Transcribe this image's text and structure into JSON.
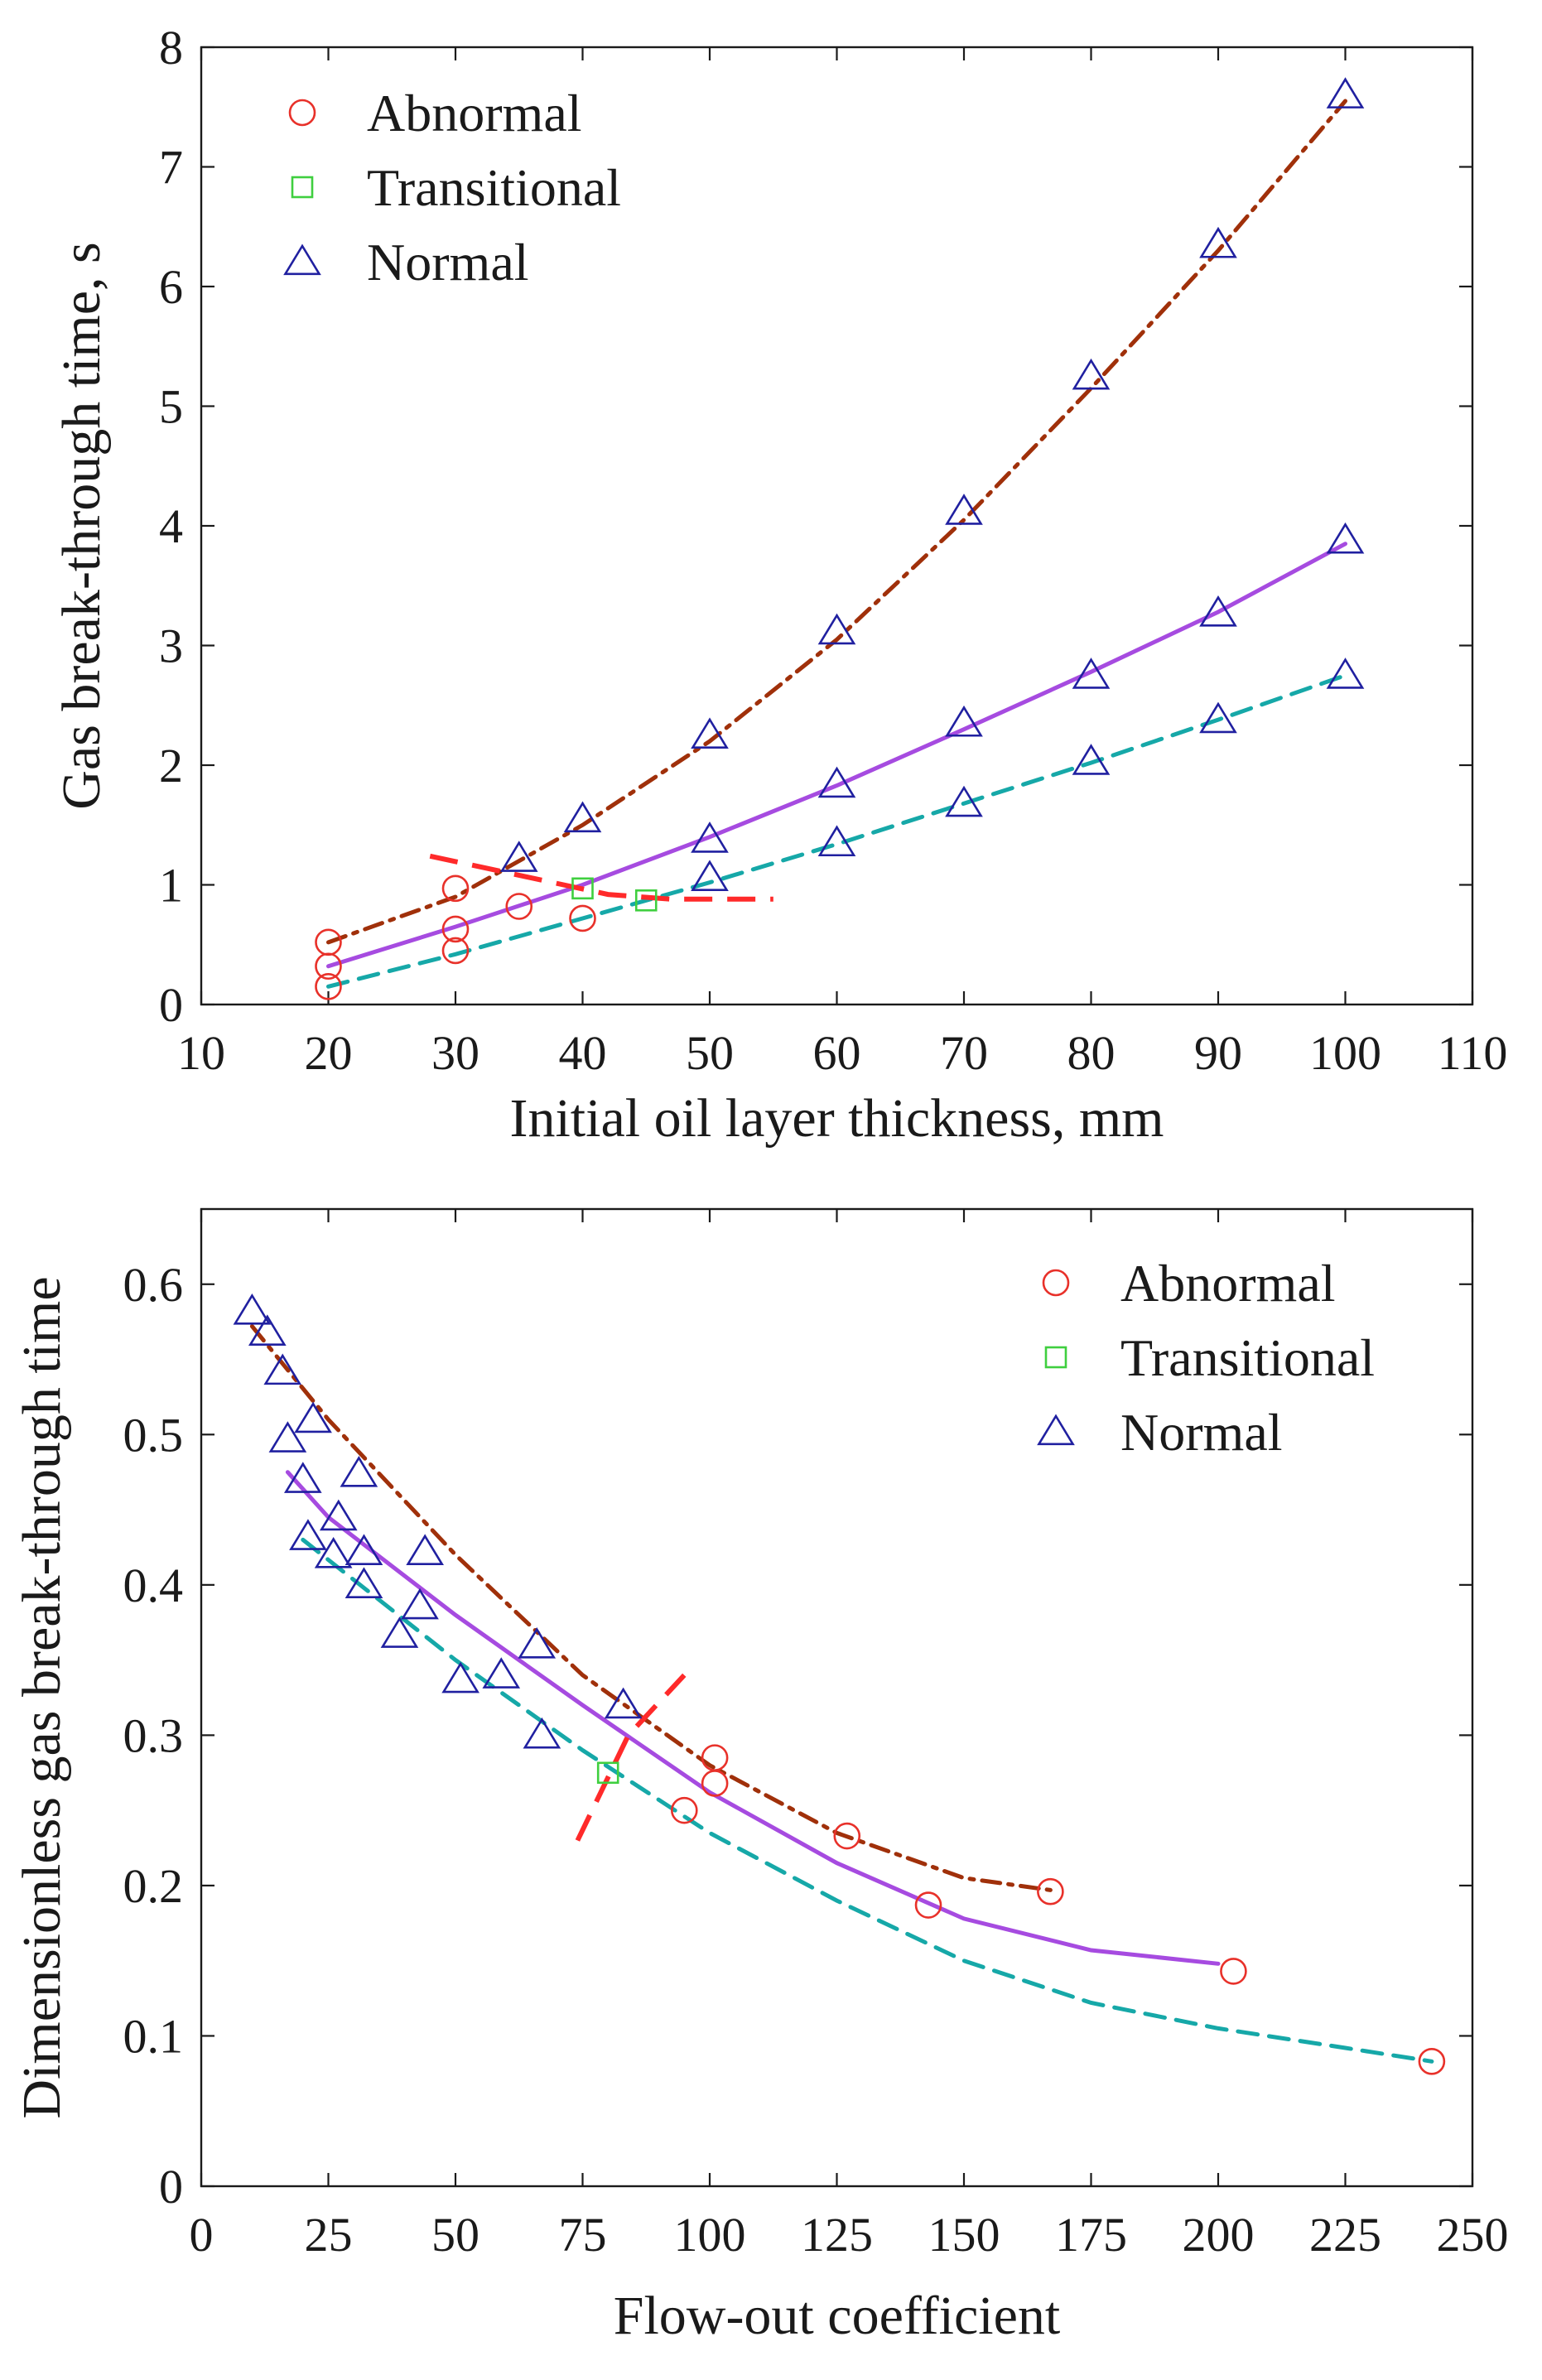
{
  "chart_data": [
    {
      "type": "scatter",
      "xlabel": "Initial oil layer thickness, mm",
      "ylabel": "Gas break-through time, s",
      "xlim": [
        10,
        110
      ],
      "ylim": [
        0,
        8
      ],
      "xticks": [
        10,
        20,
        30,
        40,
        50,
        60,
        70,
        80,
        90,
        100,
        110
      ],
      "yticks": [
        0,
        1,
        2,
        3,
        4,
        5,
        6,
        7,
        8
      ],
      "legend_position": "top-left",
      "legend": [
        {
          "label": "Abnormal",
          "marker": "circle",
          "color": "#e8312a"
        },
        {
          "label": "Transitional",
          "marker": "square",
          "color": "#3fcf3f"
        },
        {
          "label": "Normal",
          "marker": "triangle",
          "color": "#2020a0"
        }
      ],
      "series": [
        {
          "name": "Abnormal",
          "marker": "circle",
          "color": "#e8312a",
          "points": [
            [
              20,
              0.52
            ],
            [
              20,
              0.32
            ],
            [
              20,
              0.15
            ],
            [
              30,
              0.97
            ],
            [
              30,
              0.63
            ],
            [
              30,
              0.45
            ],
            [
              35,
              0.82
            ],
            [
              40,
              0.72
            ]
          ]
        },
        {
          "name": "Transitional",
          "marker": "square",
          "color": "#3fcf3f",
          "points": [
            [
              40,
              0.97
            ],
            [
              45,
              0.87
            ]
          ]
        },
        {
          "name": "Normal",
          "marker": "triangle",
          "color": "#2020a0",
          "points": [
            [
              35,
              1.22
            ],
            [
              40,
              1.55
            ],
            [
              50,
              2.25
            ],
            [
              60,
              3.12
            ],
            [
              70,
              4.12
            ],
            [
              80,
              5.25
            ],
            [
              90,
              6.35
            ],
            [
              100,
              7.6
            ],
            [
              50,
              1.38
            ],
            [
              60,
              1.84
            ],
            [
              70,
              2.35
            ],
            [
              80,
              2.75
            ],
            [
              90,
              3.27
            ],
            [
              100,
              3.88
            ],
            [
              50,
              1.06
            ],
            [
              60,
              1.35
            ],
            [
              70,
              1.68
            ],
            [
              80,
              2.03
            ],
            [
              90,
              2.38
            ],
            [
              100,
              2.75
            ]
          ]
        }
      ],
      "fit_lines": [
        {
          "name": "upper-fit",
          "style": "dash-dot",
          "color": "#a0300a",
          "points": [
            [
              20,
              0.52
            ],
            [
              30,
              0.9
            ],
            [
              40,
              1.5
            ],
            [
              50,
              2.2
            ],
            [
              60,
              3.05
            ],
            [
              70,
              4.05
            ],
            [
              80,
              5.15
            ],
            [
              90,
              6.3
            ],
            [
              100,
              7.55
            ]
          ]
        },
        {
          "name": "middle-fit",
          "style": "solid",
          "color": "#a64be0",
          "points": [
            [
              20,
              0.32
            ],
            [
              30,
              0.65
            ],
            [
              40,
              1.0
            ],
            [
              50,
              1.4
            ],
            [
              60,
              1.83
            ],
            [
              70,
              2.3
            ],
            [
              80,
              2.78
            ],
            [
              90,
              3.28
            ],
            [
              100,
              3.85
            ]
          ]
        },
        {
          "name": "lower-fit",
          "style": "dashed",
          "color": "#16a8a8",
          "points": [
            [
              20,
              0.15
            ],
            [
              30,
              0.42
            ],
            [
              40,
              0.72
            ],
            [
              50,
              1.02
            ],
            [
              60,
              1.34
            ],
            [
              70,
              1.68
            ],
            [
              80,
              2.02
            ],
            [
              90,
              2.38
            ],
            [
              100,
              2.75
            ]
          ]
        }
      ],
      "boundary_line": {
        "color": "#ff2a2a",
        "style": "dashed",
        "points": [
          [
            28,
            1.24
          ],
          [
            35,
            1.08
          ],
          [
            42,
            0.92
          ],
          [
            47,
            0.88
          ],
          [
            55,
            0.88
          ]
        ]
      }
    },
    {
      "type": "scatter",
      "xlabel": "Flow-out coefficient",
      "ylabel": "Dimensionless gas break-through time",
      "xlim": [
        0,
        250
      ],
      "ylim": [
        0,
        0.65
      ],
      "xticks": [
        0,
        25,
        50,
        75,
        100,
        125,
        150,
        175,
        200,
        225,
        250
      ],
      "yticks": [
        0,
        0.1,
        0.2,
        0.3,
        0.4,
        0.5,
        0.6
      ],
      "legend_position": "top-right",
      "legend": [
        {
          "label": "Abnormal",
          "marker": "circle",
          "color": "#e8312a"
        },
        {
          "label": "Transitional",
          "marker": "square",
          "color": "#3fcf3f"
        },
        {
          "label": "Normal",
          "marker": "triangle",
          "color": "#2020a0"
        }
      ],
      "series": [
        {
          "name": "Abnormal",
          "marker": "circle",
          "color": "#e8312a",
          "points": [
            [
              95,
              0.25
            ],
            [
              101,
              0.285
            ],
            [
              101,
              0.268
            ],
            [
              127,
              0.233
            ],
            [
              143,
              0.187
            ],
            [
              167,
              0.196
            ],
            [
              203,
              0.143
            ],
            [
              242,
              0.083
            ]
          ]
        },
        {
          "name": "Transitional",
          "marker": "square",
          "color": "#3fcf3f",
          "points": [
            [
              80,
              0.275
            ]
          ]
        },
        {
          "name": "Normal",
          "marker": "triangle",
          "color": "#2020a0",
          "points": [
            [
              10,
              0.582
            ],
            [
              13,
              0.568
            ],
            [
              16,
              0.542
            ],
            [
              17,
              0.497
            ],
            [
              20,
              0.47
            ],
            [
              22,
              0.51
            ],
            [
              21,
              0.432
            ],
            [
              26,
              0.42
            ],
            [
              27,
              0.445
            ],
            [
              31,
              0.474
            ],
            [
              32,
              0.422
            ],
            [
              32,
              0.4
            ],
            [
              39,
              0.367
            ],
            [
              43,
              0.386
            ],
            [
              44,
              0.422
            ],
            [
              51,
              0.337
            ],
            [
              59,
              0.34
            ],
            [
              66,
              0.36
            ],
            [
              67,
              0.3
            ],
            [
              83,
              0.32
            ]
          ]
        }
      ],
      "fit_lines": [
        {
          "name": "upper-fit",
          "style": "dash-dot",
          "color": "#a0300a",
          "points": [
            [
              10,
              0.572
            ],
            [
              25,
              0.51
            ],
            [
              50,
              0.42
            ],
            [
              75,
              0.34
            ],
            [
              100,
              0.28
            ],
            [
              125,
              0.235
            ],
            [
              150,
              0.205
            ],
            [
              167,
              0.197
            ]
          ]
        },
        {
          "name": "middle-fit",
          "style": "solid",
          "color": "#a64be0",
          "points": [
            [
              17,
              0.475
            ],
            [
              25,
              0.445
            ],
            [
              50,
              0.38
            ],
            [
              75,
              0.32
            ],
            [
              100,
              0.262
            ],
            [
              125,
              0.215
            ],
            [
              150,
              0.178
            ],
            [
              175,
              0.157
            ],
            [
              200,
              0.148
            ]
          ]
        },
        {
          "name": "lower-fit",
          "style": "dashed",
          "color": "#16a8a8",
          "points": [
            [
              20,
              0.43
            ],
            [
              50,
              0.35
            ],
            [
              75,
              0.29
            ],
            [
              100,
              0.235
            ],
            [
              125,
              0.19
            ],
            [
              150,
              0.15
            ],
            [
              175,
              0.122
            ],
            [
              200,
              0.105
            ],
            [
              225,
              0.092
            ],
            [
              242,
              0.083
            ]
          ]
        }
      ],
      "boundary_line": {
        "color": "#ff2a2a",
        "style": "dashed",
        "points": [
          [
            74,
            0.23
          ],
          [
            84,
            0.3
          ],
          [
            95,
            0.34
          ]
        ]
      }
    }
  ]
}
